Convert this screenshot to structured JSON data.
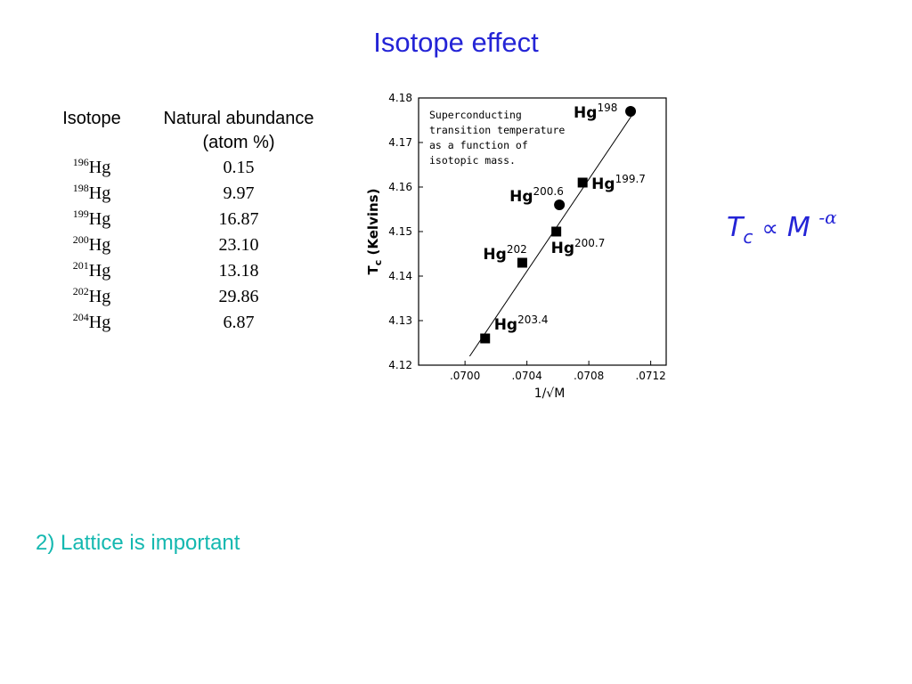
{
  "slide": {
    "title": "Isotope effect",
    "bullet": "2) Lattice is important"
  },
  "table": {
    "headers": [
      "Isotope",
      "Natural abundance",
      "(atom %)"
    ],
    "rows": [
      {
        "mass": "196",
        "element": "Hg",
        "abundance": "0.15"
      },
      {
        "mass": "198",
        "element": "Hg",
        "abundance": "9.97"
      },
      {
        "mass": "199",
        "element": "Hg",
        "abundance": "16.87"
      },
      {
        "mass": "200",
        "element": "Hg",
        "abundance": "23.10"
      },
      {
        "mass": "201",
        "element": "Hg",
        "abundance": "13.18"
      },
      {
        "mass": "202",
        "element": "Hg",
        "abundance": "29.86"
      },
      {
        "mass": "204",
        "element": "Hg",
        "abundance": "6.87"
      }
    ]
  },
  "formula": {
    "base": "T",
    "base_sub": "c",
    "proportional": "∝",
    "mass": "M",
    "exponent": "-α"
  },
  "chart_data": {
    "type": "scatter",
    "annotation": [
      "Superconducting",
      "transition temperature",
      "as a function of",
      "isotopic mass."
    ],
    "ylabel": "T",
    "ylabel_sub": "c",
    "ylabel_rest": "(Kelvins)",
    "xlabel": "1/√M",
    "xlim": [
      0.0697,
      0.0713
    ],
    "ylim": [
      4.12,
      4.18
    ],
    "xticks": [
      0.07,
      0.0704,
      0.0708,
      0.0712
    ],
    "xtick_labels": [
      ".0700",
      ".0704",
      ".0708",
      ".0712"
    ],
    "yticks": [
      4.12,
      4.13,
      4.14,
      4.15,
      4.16,
      4.17,
      4.18
    ],
    "ytick_labels": [
      "4.12",
      "4.13",
      "4.14",
      "4.15",
      "4.16",
      "4.17",
      "4.18"
    ],
    "points": [
      {
        "x": 0.07107,
        "y": 4.177,
        "marker": "circle",
        "label": "Hg",
        "label_sup": "198"
      },
      {
        "x": 0.07076,
        "y": 4.161,
        "marker": "square",
        "label": "Hg",
        "label_sup": "199.7"
      },
      {
        "x": 0.07061,
        "y": 4.156,
        "marker": "circle",
        "label": "Hg",
        "label_sup": "200.6"
      },
      {
        "x": 0.07059,
        "y": 4.15,
        "marker": "square",
        "label": "Hg",
        "label_sup": "200.7"
      },
      {
        "x": 0.07037,
        "y": 4.143,
        "marker": "square",
        "label": "Hg",
        "label_sup": "202"
      },
      {
        "x": 0.07013,
        "y": 4.126,
        "marker": "square",
        "label": "Hg",
        "label_sup": "203.4"
      }
    ],
    "fit_line": [
      {
        "x": 0.07003,
        "y": 4.122
      },
      {
        "x": 0.07109,
        "y": 4.1767
      }
    ]
  }
}
